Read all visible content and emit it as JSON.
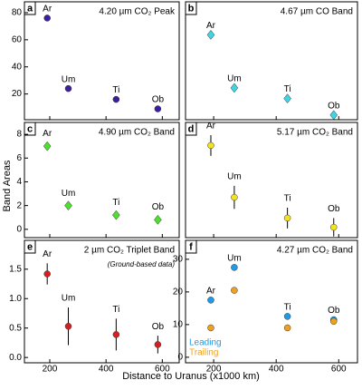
{
  "xlabel": "Distance to Uranus (x1000 km)",
  "ylabel": "Band Areas",
  "chart_data": [
    {
      "type": "scatter",
      "panel_label": "a",
      "title": "4.20 µm CO₂ Peak",
      "marker": "circle",
      "color": "#3b1f9e",
      "x": [
        191,
        266,
        436,
        584
      ],
      "point_labels": [
        "Ar",
        "Um",
        "Ti",
        "Ob"
      ],
      "values": [
        76,
        24,
        16,
        9
      ],
      "xlim": [
        110,
        660
      ],
      "xticks": [
        200,
        400,
        600
      ],
      "xtick_labels": false,
      "ylim": [
        1,
        88
      ],
      "yticks": [
        20,
        40,
        60,
        80
      ]
    },
    {
      "type": "scatter",
      "panel_label": "b",
      "title": "4.67 µm CO Band",
      "marker": "diamond",
      "color": "#3fd3e3",
      "x": [
        191,
        266,
        436,
        584
      ],
      "point_labels": [
        "Ar",
        "Um",
        "Ti",
        "Ob"
      ],
      "values": [
        72,
        27,
        18,
        4
      ],
      "xlim": [
        110,
        660
      ],
      "xticks": [
        200,
        400,
        600
      ],
      "xtick_labels": false,
      "ylim": [
        0,
        100
      ]
    },
    {
      "type": "scatter",
      "panel_label": "c",
      "title": "4.90 µm CO₂ Band",
      "marker": "diamond",
      "color": "#4ee02e",
      "x": [
        191,
        266,
        436,
        584
      ],
      "point_labels": [
        "Ar",
        "Um",
        "Ti",
        "Ob"
      ],
      "values": [
        7.0,
        2.0,
        1.2,
        0.8
      ],
      "errors": [
        0.3,
        0.25,
        0.3,
        0.3
      ],
      "xlim": [
        110,
        660
      ],
      "xticks": [
        200,
        400,
        600
      ],
      "xtick_labels": false,
      "ylim": [
        -0.7,
        9
      ],
      "yticks": [
        0,
        2,
        4,
        6,
        8
      ]
    },
    {
      "type": "scatter",
      "panel_label": "d",
      "title": "5.17 µm CO₂ Band",
      "marker": "circle",
      "color": "#f2e21f",
      "x": [
        191,
        266,
        436,
        584
      ],
      "point_labels": [
        "Ar",
        "Um",
        "Ti",
        "Ob"
      ],
      "values": [
        80,
        35,
        17,
        9
      ],
      "errors": [
        9,
        10,
        9,
        8
      ],
      "xlim": [
        110,
        660
      ],
      "xticks": [
        200,
        400,
        600
      ],
      "xtick_labels": false,
      "ylim": [
        0,
        100
      ]
    },
    {
      "type": "scatter",
      "panel_label": "e",
      "title": "2 µm CO₂ Triplet Band",
      "note": "(Ground-based data)",
      "marker": "circle",
      "color": "#d42020",
      "x": [
        191,
        266,
        436,
        584
      ],
      "point_labels": [
        "Ar",
        "Um",
        "Ti",
        "Ob"
      ],
      "values": [
        1.42,
        0.53,
        0.39,
        0.22
      ],
      "errors": [
        0.18,
        0.32,
        0.27,
        0.15
      ],
      "xlim": [
        110,
        660
      ],
      "xticks": [
        200,
        400,
        600
      ],
      "xtick_labels": true,
      "ylim": [
        -0.09,
        1.99
      ],
      "yticks": [
        {
          "value": 0,
          "label": "0.0"
        },
        {
          "value": 0.5,
          "label": "0.5"
        },
        {
          "value": 1,
          "label": "1.0"
        },
        {
          "value": 1.5,
          "label": "1.5"
        }
      ]
    },
    {
      "type": "scatter",
      "panel_label": "f",
      "title": "4.27 µm CO₂ Band",
      "marker": "circle",
      "x": [
        191,
        266,
        436,
        584
      ],
      "point_labels": [
        "Ar",
        "Um",
        "Ti",
        "Ob"
      ],
      "series": [
        {
          "name": "Leading",
          "color": "#1e9be8",
          "values": [
            17.5,
            27.5,
            12.5,
            11.5
          ]
        },
        {
          "name": "Trailing",
          "color": "#f0a020",
          "values": [
            9,
            20.5,
            9,
            11
          ]
        }
      ],
      "xlim": [
        110,
        660
      ],
      "xticks": [
        200,
        400,
        600
      ],
      "xtick_labels": true,
      "ylim": [
        -1.7,
        35.8
      ],
      "yticks": [
        0,
        10,
        20,
        30
      ]
    }
  ]
}
